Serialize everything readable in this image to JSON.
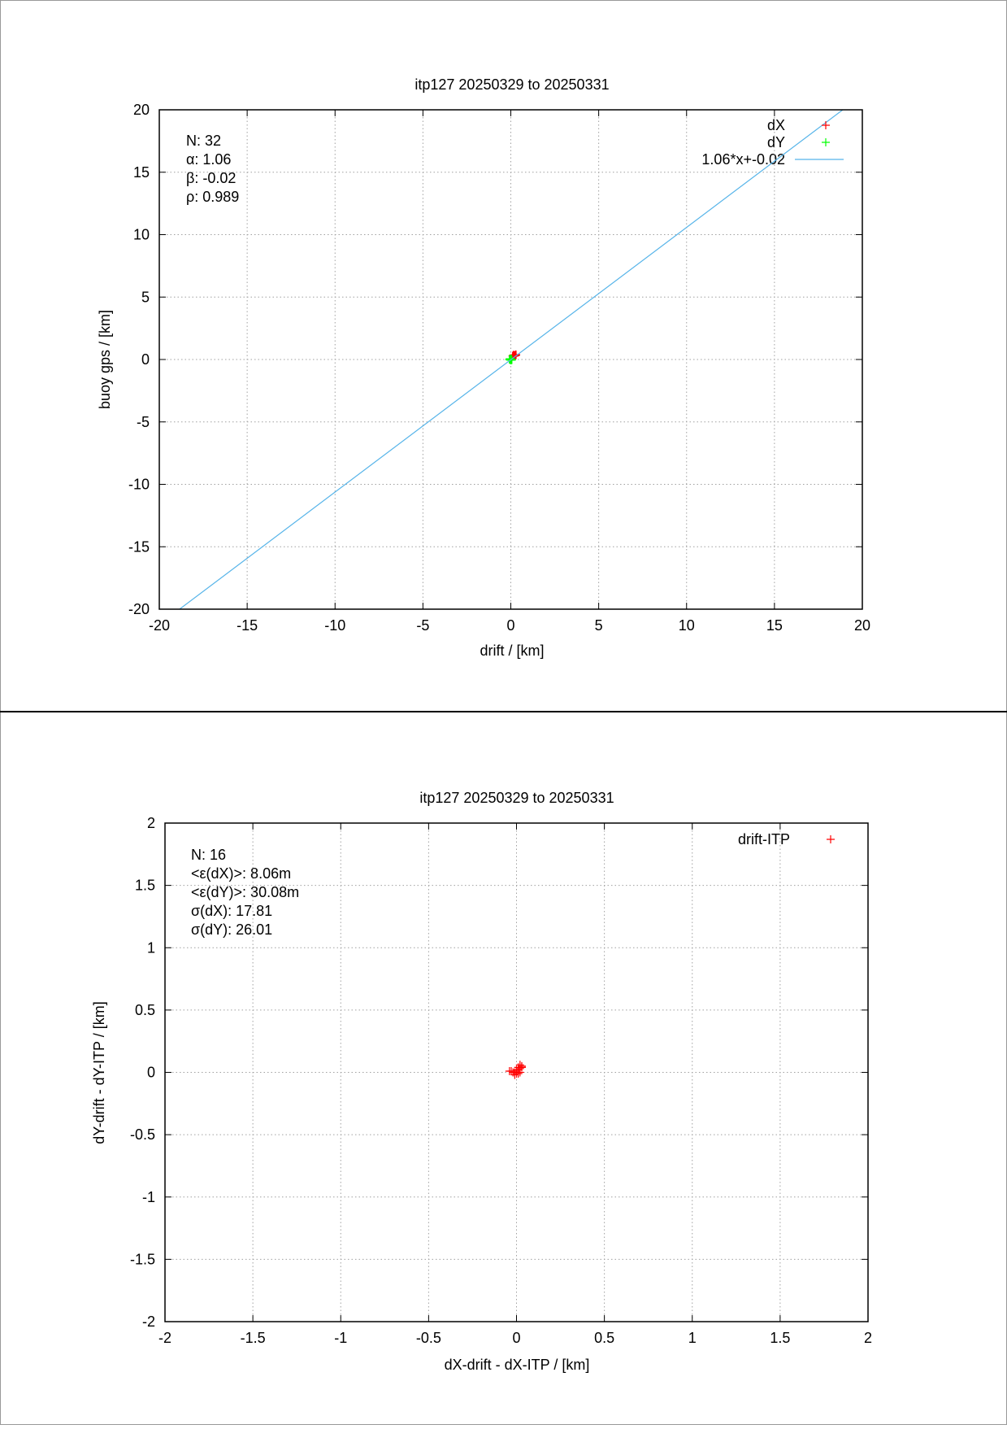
{
  "chart_data": [
    {
      "type": "scatter",
      "title": "itp127 20250329 to 20250331",
      "xlabel": "drift / [km]",
      "ylabel": "buoy gps / [km]",
      "xlim": [
        -20,
        20
      ],
      "ylim": [
        -20,
        20
      ],
      "xticks": [
        "-20",
        "-15",
        "-10",
        "-5",
        "0",
        "5",
        "10",
        "15",
        "20"
      ],
      "yticks": [
        "-20",
        "-15",
        "-10",
        "-5",
        "0",
        "5",
        "10",
        "15",
        "20"
      ],
      "grid": true,
      "legend_position": "top-right",
      "stats": [
        "N: 32",
        "α: 1.06",
        "β: -0.02",
        "ρ: 0.989"
      ],
      "series": [
        {
          "name": "dX",
          "kind": "points",
          "marker": "+",
          "color": "#ff0000",
          "points": [
            [
              0.1,
              0.28
            ],
            [
              0.18,
              0.35
            ],
            [
              0.25,
              0.3
            ],
            [
              0.3,
              0.38
            ],
            [
              0.2,
              0.32
            ],
            [
              0.15,
              0.26
            ],
            [
              0.28,
              0.4
            ],
            [
              0.22,
              0.34
            ],
            [
              0.12,
              0.3
            ],
            [
              0.26,
              0.36
            ],
            [
              0.19,
              0.27
            ],
            [
              0.24,
              0.31
            ],
            [
              0.16,
              0.37
            ],
            [
              0.29,
              0.33
            ],
            [
              0.21,
              0.29
            ],
            [
              0.14,
              0.35
            ]
          ]
        },
        {
          "name": "dY",
          "kind": "points",
          "marker": "+",
          "color": "#00ff00",
          "points": [
            [
              -0.05,
              0.0
            ],
            [
              0.0,
              0.05
            ],
            [
              -0.02,
              -0.05
            ],
            [
              0.03,
              0.02
            ],
            [
              -0.08,
              -0.02
            ],
            [
              0.02,
              -0.03
            ],
            [
              -0.04,
              0.04
            ],
            [
              0.05,
              0.0
            ],
            [
              -0.06,
              0.06
            ],
            [
              0.01,
              -0.06
            ],
            [
              -0.03,
              0.01
            ],
            [
              0.04,
              0.03
            ],
            [
              -0.01,
              -0.01
            ],
            [
              -0.07,
              0.03
            ],
            [
              0.06,
              -0.04
            ],
            [
              0.0,
              0.0
            ]
          ]
        },
        {
          "name": "1.06*x+-0.02",
          "kind": "line",
          "color": "#56b4e9",
          "slope": 1.06,
          "intercept": -0.02
        }
      ]
    },
    {
      "type": "scatter",
      "title": "itp127 20250329 to 20250331",
      "xlabel": "dX-drift - dX-ITP / [km]",
      "ylabel": "dY-drift - dY-ITP / [km]",
      "xlim": [
        -2,
        2
      ],
      "ylim": [
        -2,
        2
      ],
      "xticks": [
        "-2",
        "-1.5",
        "-1",
        "-0.5",
        "0",
        "0.5",
        "1",
        "1.5",
        "2"
      ],
      "yticks": [
        "-2",
        "-1.5",
        "-1",
        "-0.5",
        "0",
        "0.5",
        "1",
        "1.5",
        "2"
      ],
      "grid": true,
      "legend_position": "top-right",
      "stats": [
        "N: 16",
        "<ε(dX)>:  8.06m",
        "<ε(dY)>: 30.08m",
        "σ(dX):  17.81",
        "σ(dY):  26.01"
      ],
      "series": [
        {
          "name": "drift-ITP",
          "kind": "points",
          "marker": "+",
          "color": "#ff0000",
          "points": [
            [
              -0.04,
              0.01
            ],
            [
              -0.02,
              0.0
            ],
            [
              -0.01,
              -0.02
            ],
            [
              0.0,
              0.01
            ],
            [
              0.01,
              -0.01
            ],
            [
              0.02,
              0.03
            ],
            [
              0.02,
              0.06
            ],
            [
              0.03,
              0.05
            ],
            [
              0.01,
              0.02
            ],
            [
              -0.01,
              0.0
            ],
            [
              0.0,
              -0.01
            ],
            [
              0.03,
              0.04
            ],
            [
              -0.03,
              0.01
            ],
            [
              0.02,
              0.0
            ],
            [
              0.01,
              0.04
            ],
            [
              0.0,
              0.02
            ]
          ]
        }
      ]
    }
  ]
}
